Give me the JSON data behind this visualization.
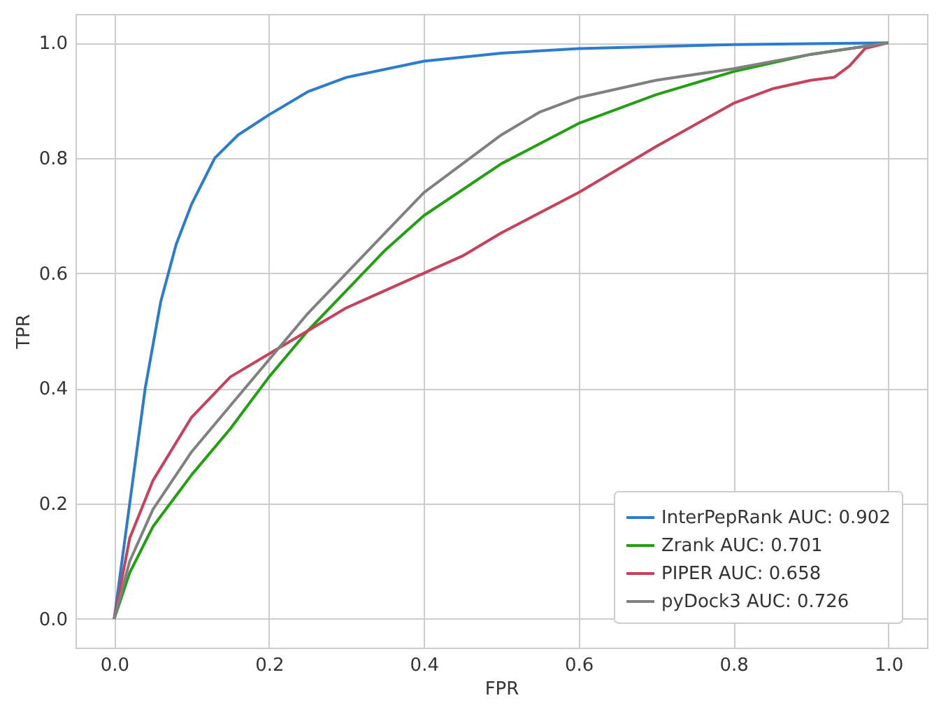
{
  "chart_data": {
    "type": "line",
    "xlabel": "FPR",
    "ylabel": "TPR",
    "xlim": [
      -0.05,
      1.05
    ],
    "ylim": [
      -0.05,
      1.05
    ],
    "xticks": [
      {
        "value": 0,
        "label": "0.0"
      },
      0.2,
      0.4,
      0.6,
      0.8,
      {
        "value": 1,
        "label": "1.0"
      }
    ],
    "yticks": [
      {
        "value": 0,
        "label": "0.0"
      },
      0.2,
      0.4,
      0.6,
      0.8,
      {
        "value": 1,
        "label": "1.0"
      }
    ],
    "grid": true,
    "legend": "bottom right",
    "line_style": "solid",
    "series": [
      {
        "name": "InterPepRank AUC: 0.902",
        "color": "#2b7bd0",
        "x": [
          0,
          0.02,
          0.04,
          0.06,
          0.08,
          0.1,
          0.13,
          0.16,
          0.2,
          0.25,
          0.3,
          0.4,
          0.5,
          0.6,
          0.8,
          1
        ],
        "values": [
          0,
          0.2,
          0.4,
          0.55,
          0.65,
          0.72,
          0.8,
          0.84,
          0.875,
          0.915,
          0.94,
          0.968,
          0.982,
          0.99,
          0.997,
          1
        ]
      },
      {
        "name": "Zrank AUC: 0.701",
        "color": "#22a012",
        "x": [
          0,
          0.02,
          0.05,
          0.1,
          0.15,
          0.2,
          0.25,
          0.3,
          0.35,
          0.4,
          0.5,
          0.6,
          0.7,
          0.8,
          0.9,
          1
        ],
        "values": [
          0,
          0.08,
          0.16,
          0.25,
          0.33,
          0.42,
          0.5,
          0.57,
          0.64,
          0.7,
          0.79,
          0.86,
          0.91,
          0.95,
          0.98,
          1
        ]
      },
      {
        "name": "PIPER AUC: 0.658",
        "color": "#c8405a",
        "x": [
          0,
          0.02,
          0.05,
          0.1,
          0.15,
          0.2,
          0.25,
          0.3,
          0.4,
          0.45,
          0.5,
          0.6,
          0.7,
          0.8,
          0.85,
          0.9,
          0.93,
          0.95,
          0.97,
          1
        ],
        "values": [
          0,
          0.14,
          0.24,
          0.35,
          0.42,
          0.46,
          0.5,
          0.54,
          0.6,
          0.63,
          0.67,
          0.74,
          0.82,
          0.895,
          0.92,
          0.935,
          0.94,
          0.96,
          0.99,
          1
        ]
      },
      {
        "name": "pyDock3 AUC: 0.726",
        "color": "#808080",
        "x": [
          0,
          0.02,
          0.05,
          0.1,
          0.15,
          0.2,
          0.25,
          0.3,
          0.35,
          0.4,
          0.5,
          0.55,
          0.6,
          0.7,
          0.8,
          0.9,
          1
        ],
        "values": [
          0,
          0.1,
          0.19,
          0.29,
          0.37,
          0.45,
          0.53,
          0.6,
          0.67,
          0.74,
          0.84,
          0.88,
          0.905,
          0.935,
          0.955,
          0.98,
          1
        ]
      }
    ]
  }
}
